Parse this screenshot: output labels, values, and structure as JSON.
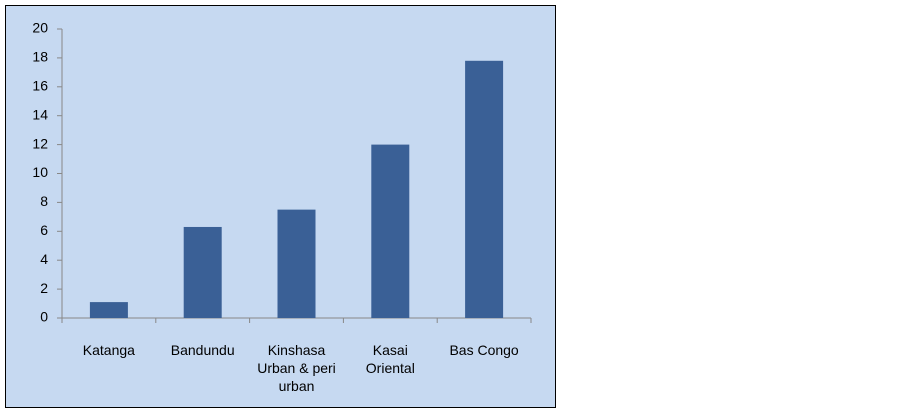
{
  "chart_data": {
    "type": "bar",
    "categories": [
      "Katanga",
      "Bandundu",
      "Kinshasa Urban & peri urban",
      "Kasai Oriental",
      "Bas Congo"
    ],
    "values": [
      1.1,
      6.3,
      7.5,
      12,
      17.8
    ],
    "color": "#3a6096",
    "ylim": [
      0,
      20
    ],
    "yticks": [
      0,
      2,
      4,
      6,
      8,
      10,
      12,
      14,
      16,
      18,
      20
    ],
    "grid": false
  }
}
